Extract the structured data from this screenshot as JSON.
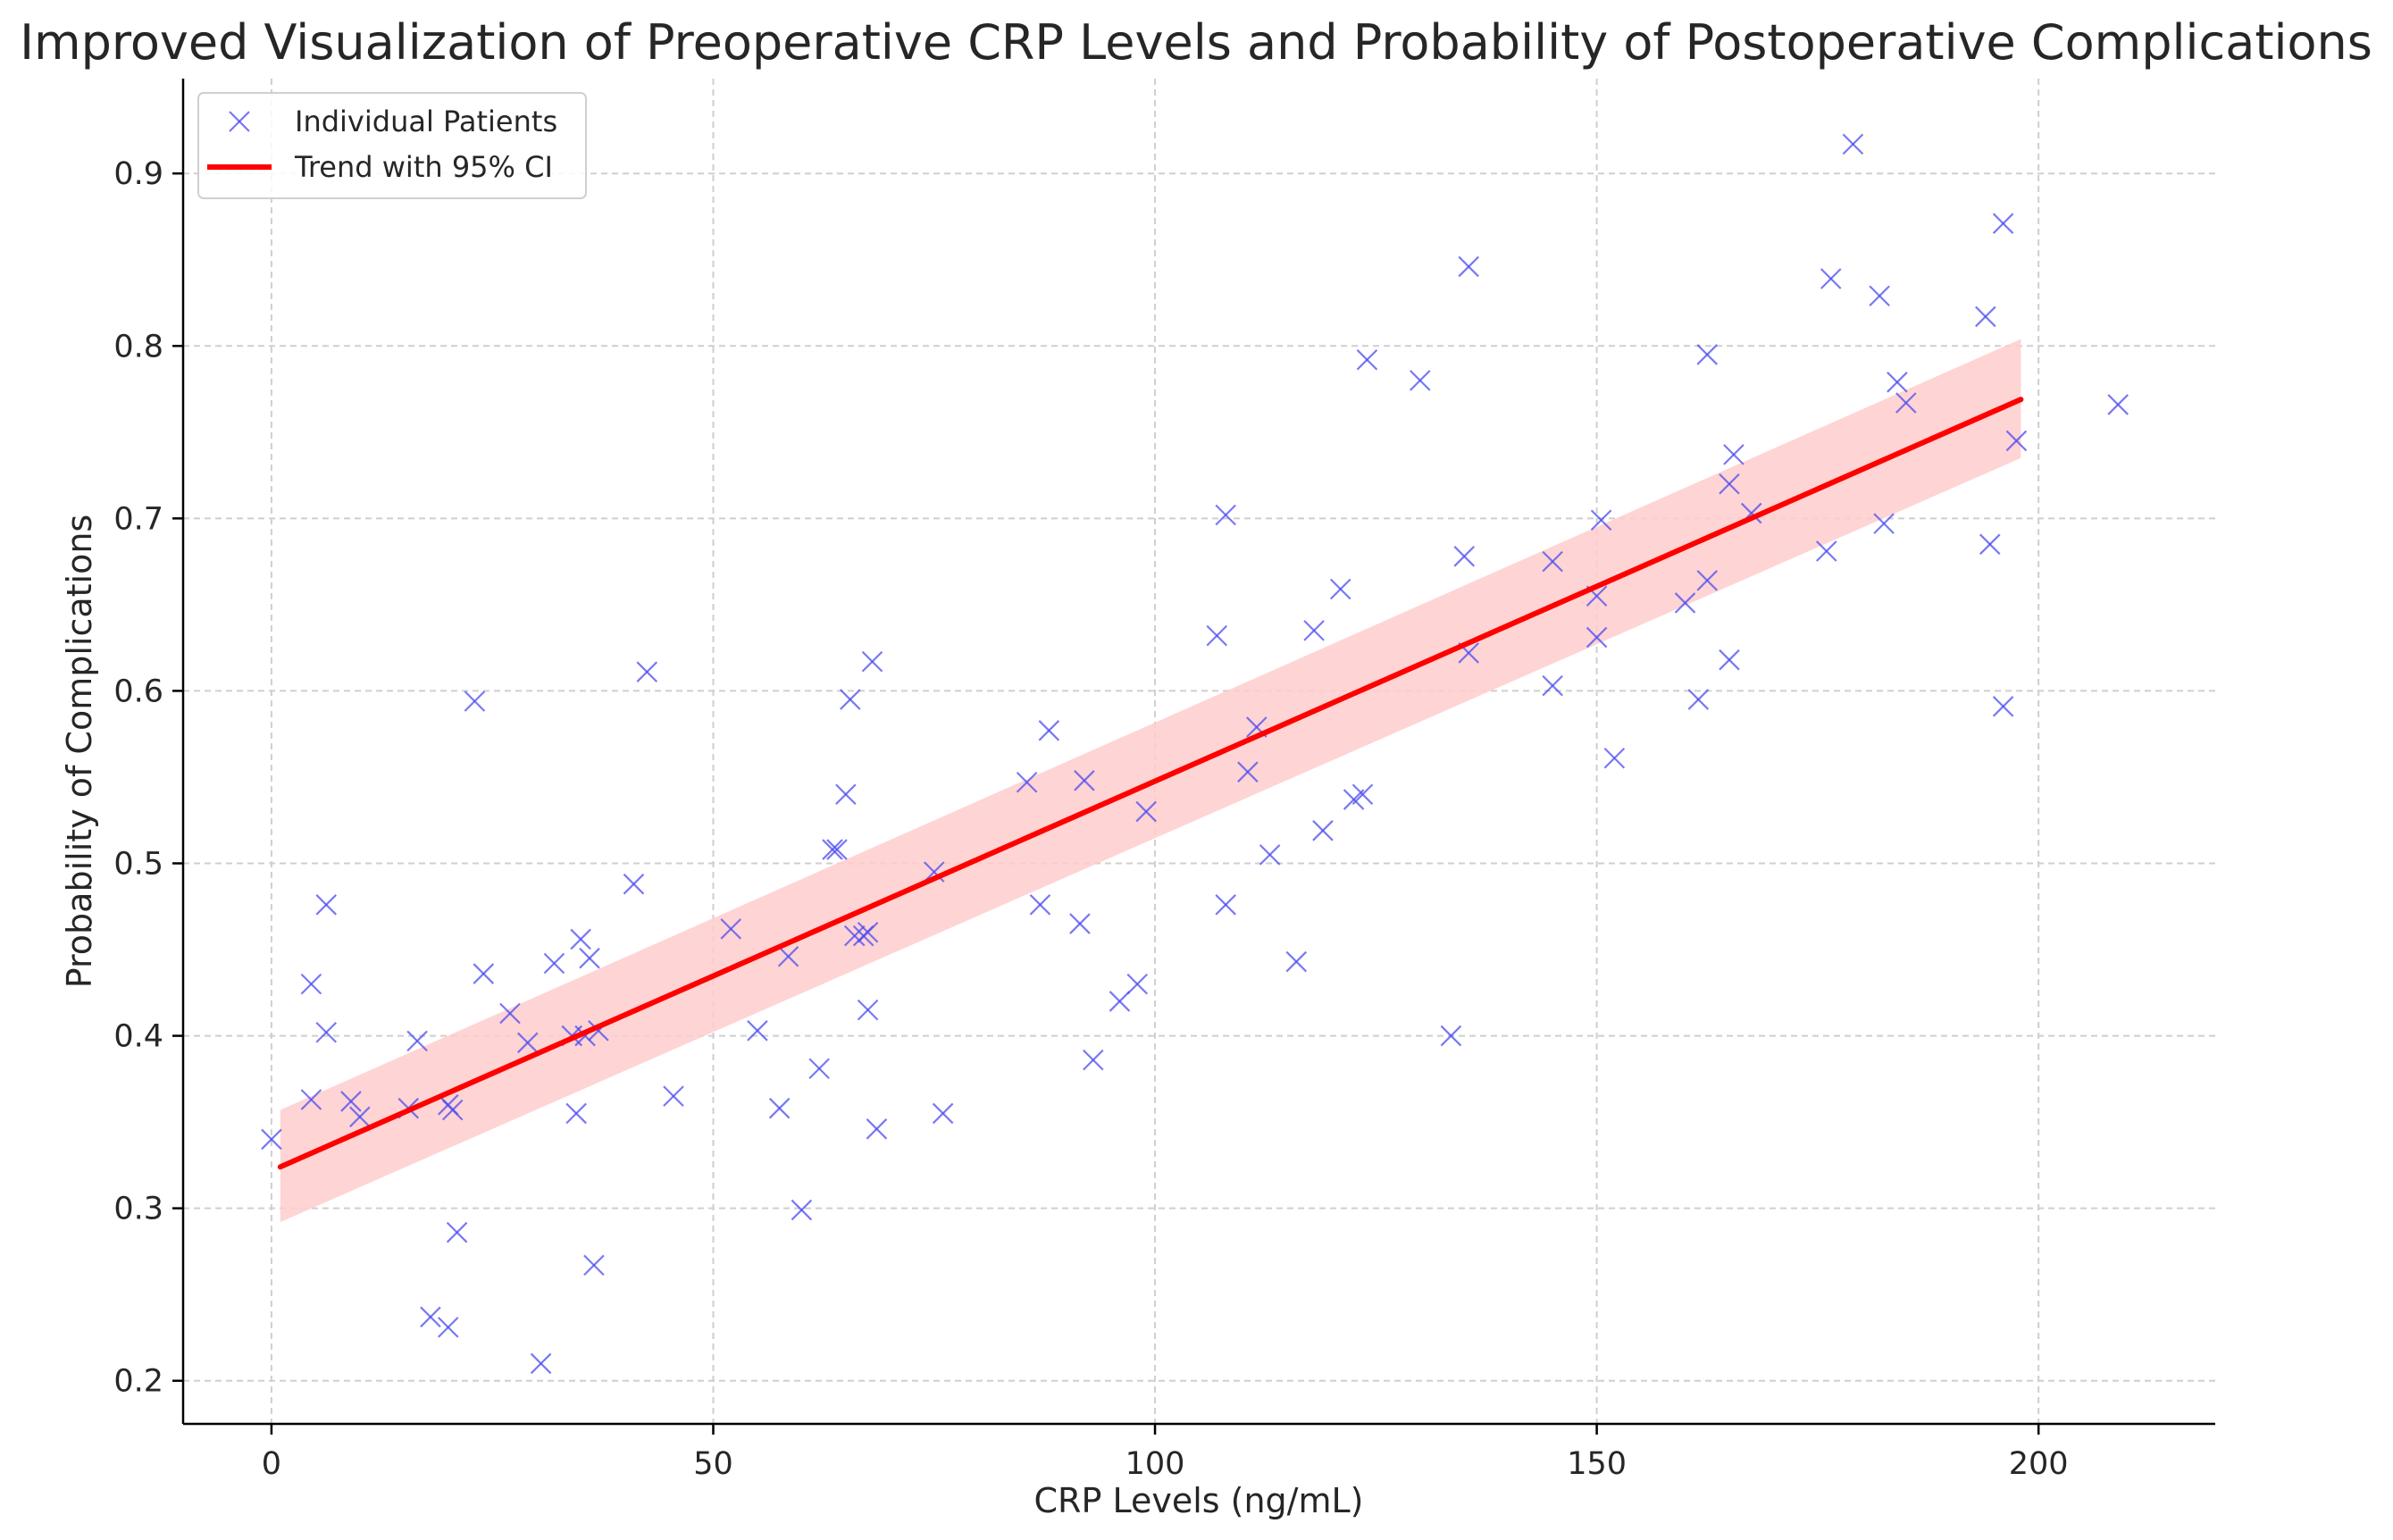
{
  "chart_data": {
    "type": "scatter",
    "title": "Improved Visualization of Preoperative CRP Levels and Probability of Postoperative Complications",
    "xlabel": "CRP Levels (ng/mL)",
    "ylabel": "Probability of Complications",
    "xlim": [
      -10,
      220
    ],
    "ylim": [
      0.175,
      0.955
    ],
    "xticks": [
      0,
      50,
      100,
      150,
      200
    ],
    "yticks": [
      0.2,
      0.3,
      0.4,
      0.5,
      0.6,
      0.7,
      0.8,
      0.9
    ],
    "xtick_labels": [
      "0",
      "50",
      "100",
      "150",
      "200"
    ],
    "ytick_labels": [
      "0.2",
      "0.3",
      "0.4",
      "0.5",
      "0.6",
      "0.7",
      "0.8",
      "0.9"
    ],
    "grid": true,
    "legend_position": "top-left",
    "legend": [
      "Individual Patients",
      "Trend with 95% CI"
    ],
    "colors": {
      "points": "#4b4bf0",
      "trend": "#ff0000",
      "ci": "#ffcccc"
    },
    "scatter_series": {
      "name": "Individual Patients",
      "marker": "x",
      "x": [
        0,
        4.5,
        4.5,
        6.2,
        6.2,
        9,
        10,
        15.5,
        16.5,
        18,
        20,
        20,
        20.5,
        21,
        23,
        24,
        27,
        29,
        30.5,
        32,
        34,
        34.5,
        35,
        35.5,
        36,
        36.5,
        37,
        41,
        42.5,
        45.5,
        52,
        55,
        57.5,
        58.5,
        60,
        62,
        63.5,
        64,
        65,
        65.5,
        66,
        67,
        67.5,
        67.5,
        68,
        68.5,
        75,
        76,
        85.5,
        87,
        88,
        91.5,
        92,
        93,
        96,
        98,
        99,
        107,
        108,
        108,
        110.5,
        111.5,
        113,
        116,
        118,
        119,
        121,
        122.5,
        123.5,
        124,
        130,
        133.5,
        135,
        135.5,
        135.5,
        145,
        145,
        150,
        150,
        150.5,
        152,
        160,
        161.5,
        162.5,
        162.5,
        165,
        165,
        165.5,
        167.5,
        176,
        176.5,
        179,
        182,
        182.5,
        184,
        185,
        194,
        194.5,
        196,
        196,
        197.5,
        209
      ],
      "y": [
        0.34,
        0.43,
        0.363,
        0.476,
        0.402,
        0.362,
        0.353,
        0.358,
        0.397,
        0.237,
        0.231,
        0.36,
        0.357,
        0.286,
        0.594,
        0.436,
        0.413,
        0.396,
        0.21,
        0.442,
        0.4,
        0.355,
        0.456,
        0.4,
        0.445,
        0.267,
        0.403,
        0.488,
        0.611,
        0.365,
        0.462,
        0.403,
        0.358,
        0.446,
        0.299,
        0.381,
        0.508,
        0.508,
        0.54,
        0.595,
        0.458,
        0.458,
        0.46,
        0.415,
        0.617,
        0.346,
        0.495,
        0.355,
        0.547,
        0.476,
        0.577,
        0.465,
        0.548,
        0.386,
        0.42,
        0.43,
        0.53,
        0.632,
        0.702,
        0.476,
        0.553,
        0.579,
        0.505,
        0.443,
        0.635,
        0.519,
        0.659,
        0.537,
        0.54,
        0.792,
        0.78,
        0.4,
        0.678,
        0.846,
        0.622,
        0.675,
        0.603,
        0.631,
        0.655,
        0.699,
        0.561,
        0.651,
        0.595,
        0.795,
        0.664,
        0.72,
        0.618,
        0.737,
        0.703,
        0.681,
        0.839,
        0.917,
        0.829,
        0.697,
        0.779,
        0.767,
        0.817,
        0.685,
        0.871,
        0.591,
        0.745,
        0.766
      ]
    },
    "trend": {
      "name": "Trend with 95% CI",
      "x": [
        1,
        198
      ],
      "y": [
        0.324,
        0.769
      ],
      "ci_lower": [
        0.292,
        0.735
      ],
      "ci_upper": [
        0.357,
        0.804
      ]
    }
  }
}
